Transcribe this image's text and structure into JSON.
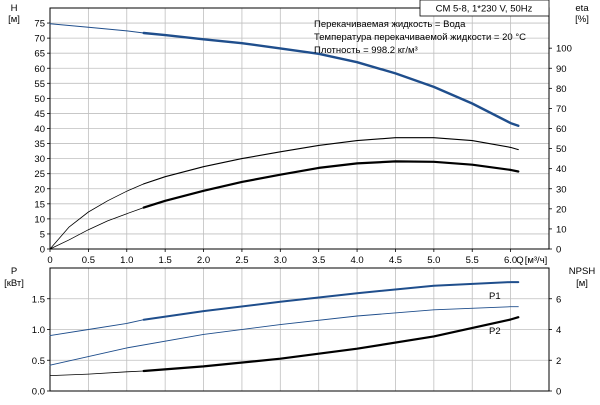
{
  "chart_data": [
    {
      "type": "line",
      "title": "CM 5-8, 1*230 V, 50Hz",
      "info_lines": [
        "Перекачиваемая жидкость = Вода",
        "Температура перекачиваемой жидкости = 20 °C",
        "Плотность = 998.2 кг/м³"
      ],
      "left_axis": {
        "label": "H",
        "unit": "[м]",
        "range": [
          0,
          80
        ],
        "ticks": [
          "0",
          "5",
          "10",
          "15",
          "20",
          "25",
          "30",
          "35",
          "40",
          "45",
          "50",
          "55",
          "60",
          "65",
          "70",
          "75"
        ]
      },
      "right_axis": {
        "label": "eta",
        "unit": "[%]",
        "range": [
          0,
          120
        ],
        "ticks": [
          "0",
          "10",
          "20",
          "30",
          "40",
          "50",
          "60",
          "70",
          "80",
          "90",
          "100"
        ]
      },
      "x_axis": {
        "label": "Q",
        "unit": "[м³/ч]",
        "range": [
          0,
          6.5
        ],
        "ticks": [
          "0",
          "0.5",
          "1.0",
          "1.5",
          "2.0",
          "2.5",
          "3.0",
          "3.5",
          "4.0",
          "4.5",
          "5.0",
          "5.5",
          "6.0"
        ]
      },
      "grid": true,
      "series": [
        {
          "axis": "left",
          "color": "#1f4e8c",
          "width": 1.0,
          "x": [
            0,
            0.5,
            1.0,
            1.22
          ],
          "y": [
            74.8,
            73.6,
            72.4,
            71.7
          ]
        },
        {
          "axis": "left",
          "color": "#1f4e8c",
          "width": 2.4,
          "x": [
            1.22,
            1.5,
            2.0,
            2.5,
            3.0,
            3.5,
            4.0,
            4.5,
            5.0,
            5.5,
            6.0,
            6.1
          ],
          "y": [
            71.7,
            71.0,
            69.6,
            68.3,
            66.6,
            64.8,
            62.0,
            58.3,
            53.8,
            48.3,
            41.8,
            40.9
          ]
        },
        {
          "axis": "right",
          "color": "#000000",
          "width": 0.8,
          "x": [
            0,
            0.25,
            0.5,
            0.75,
            1.0,
            1.22
          ],
          "y": [
            0,
            11,
            18.4,
            24,
            28.8,
            32.4
          ]
        },
        {
          "axis": "right",
          "color": "#000000",
          "width": 1.1,
          "x": [
            1.22,
            1.5,
            2.0,
            2.5,
            3.0,
            3.5,
            4.0,
            4.5,
            5.0,
            5.5,
            6.0,
            6.1
          ],
          "y": [
            32.4,
            36,
            41,
            45,
            48.4,
            51.6,
            54,
            55.4,
            55.4,
            54,
            50.6,
            49.5
          ]
        },
        {
          "axis": "right",
          "color": "#000000",
          "width": 0.8,
          "x": [
            0,
            0.25,
            0.5,
            0.75,
            1.0,
            1.22
          ],
          "y": [
            0,
            4.6,
            9.6,
            14,
            17.6,
            20.6
          ]
        },
        {
          "axis": "right",
          "color": "#000000",
          "width": 2.2,
          "x": [
            1.22,
            1.5,
            2.0,
            2.5,
            3.0,
            3.5,
            4.0,
            4.5,
            5.0,
            5.5,
            6.0,
            6.1
          ],
          "y": [
            20.6,
            24,
            29,
            33.4,
            37,
            40.4,
            42.6,
            43.6,
            43.4,
            42,
            39.4,
            38.6
          ]
        }
      ]
    },
    {
      "type": "line",
      "left_axis": {
        "label": "P",
        "unit": "[кВт]",
        "range": [
          0,
          2.0
        ],
        "ticks": [
          "0.0",
          "0.5",
          "1.0",
          "1.5"
        ]
      },
      "right_axis": {
        "label": "NPSH",
        "unit": "[м]",
        "range": [
          0,
          8
        ],
        "ticks": [
          "0",
          "2",
          "4",
          "6"
        ]
      },
      "x_axis": {
        "range": [
          0,
          6.5
        ]
      },
      "grid": true,
      "annotations": [
        "P1",
        "P2"
      ],
      "series": [
        {
          "name": "P1",
          "axis": "left",
          "color": "#1f4e8c",
          "width": 0.9,
          "x": [
            0,
            0.5,
            1.0,
            1.22
          ],
          "y": [
            0.9,
            1.0,
            1.1,
            1.16
          ]
        },
        {
          "name": "P1",
          "axis": "left",
          "color": "#1f4e8c",
          "width": 2.0,
          "x": [
            1.22,
            2.0,
            3.0,
            4.0,
            5.0,
            6.0,
            6.1
          ],
          "y": [
            1.16,
            1.3,
            1.45,
            1.59,
            1.71,
            1.77,
            1.77
          ]
        },
        {
          "name": "P2",
          "axis": "left",
          "color": "#1f4e8c",
          "width": 0.9,
          "x": [
            0,
            1.0,
            2.0,
            3.0,
            4.0,
            5.0,
            6.0,
            6.1
          ],
          "y": [
            0.42,
            0.7,
            0.92,
            1.08,
            1.22,
            1.32,
            1.37,
            1.37
          ]
        },
        {
          "axis": "right",
          "color": "#000000",
          "width": 0.8,
          "x": [
            0,
            0.5,
            1.0,
            1.22
          ],
          "y": [
            1.0,
            1.1,
            1.25,
            1.3
          ]
        },
        {
          "axis": "right",
          "color": "#000000",
          "width": 2.2,
          "x": [
            1.22,
            2.0,
            3.0,
            4.0,
            5.0,
            6.0,
            6.1
          ],
          "y": [
            1.3,
            1.6,
            2.1,
            2.75,
            3.55,
            4.65,
            4.8
          ]
        }
      ]
    }
  ]
}
